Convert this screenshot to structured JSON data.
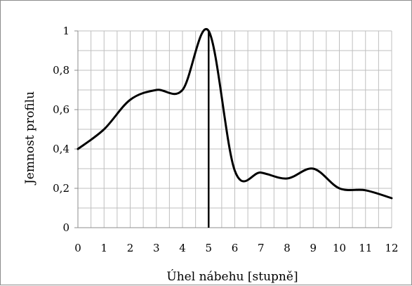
{
  "chart_data": {
    "type": "line",
    "xlabel": "Úhel nábehu [stupně]",
    "ylabel": "Jemnost profilu",
    "xlim": [
      0,
      12
    ],
    "ylim": [
      0,
      1
    ],
    "x_ticks": [
      "0",
      "1",
      "2",
      "3",
      "4",
      "5",
      "6",
      "7",
      "8",
      "9",
      "10",
      "11",
      "12"
    ],
    "y_ticks": [
      "0",
      "0,2",
      "0,4",
      "0,6",
      "0,8",
      "1"
    ],
    "grid": true,
    "x_minor_step": 0.5,
    "y_minor_step": 0.1,
    "series": [
      {
        "x": [
          0,
          1,
          2,
          3,
          4,
          5,
          6,
          7,
          8,
          9,
          10,
          11,
          12
        ],
        "values": [
          0.4,
          0.5,
          0.65,
          0.7,
          0.7,
          1.0,
          0.29,
          0.28,
          0.25,
          0.3,
          0.2,
          0.19,
          0.15
        ]
      }
    ],
    "reference_line": {
      "x": 5,
      "y_top": 1.0
    },
    "colors": {
      "line": "#000000",
      "grid": "#bfbfbf",
      "axis": "#8c8c8c"
    }
  }
}
